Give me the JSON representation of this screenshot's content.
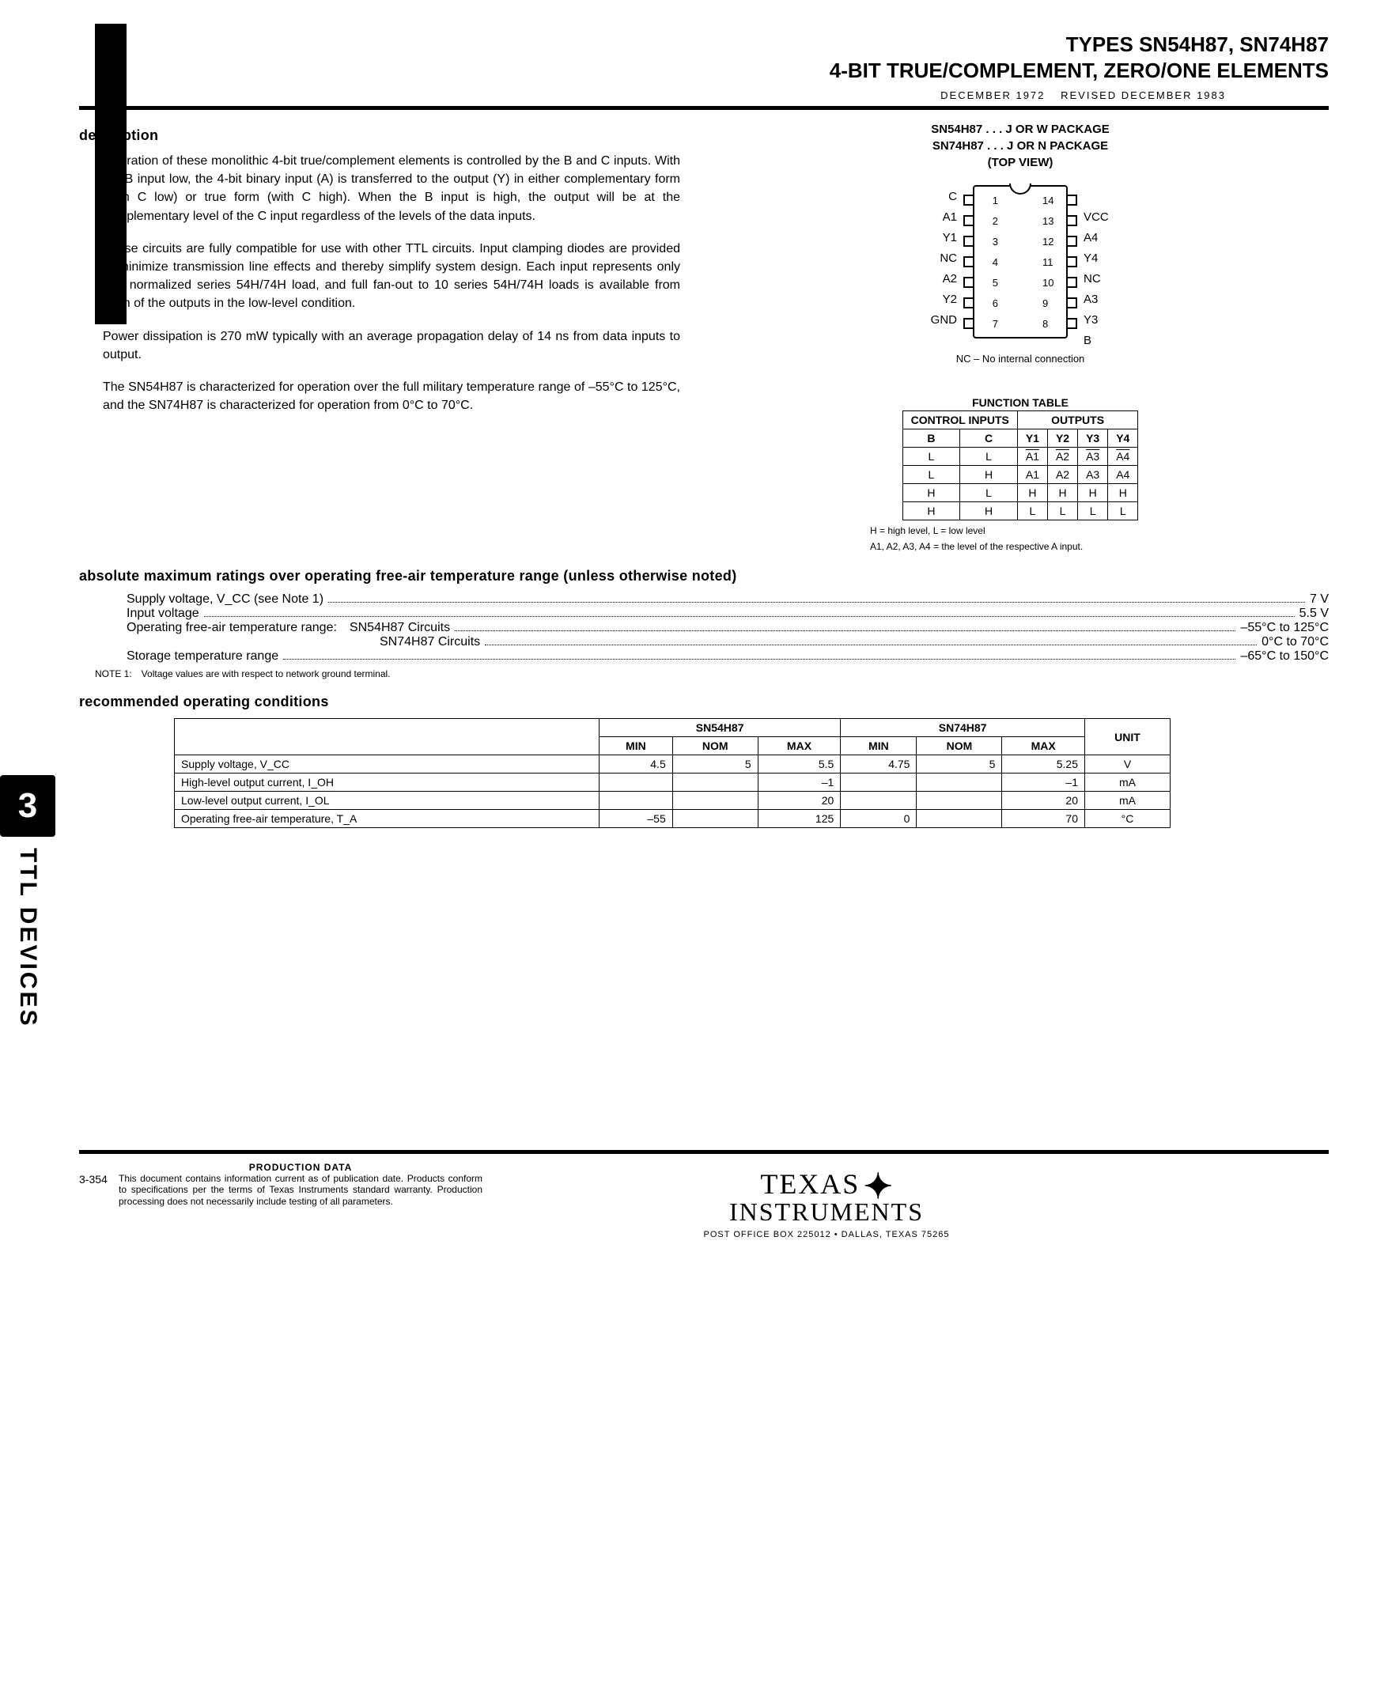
{
  "header": {
    "title_line1": "TYPES SN54H87, SN74H87",
    "title_line2": "4-BIT TRUE/COMPLEMENT, ZERO/ONE ELEMENTS",
    "revision": "DECEMBER 1972   REVISED DECEMBER 1983"
  },
  "sections": {
    "description_head": "description",
    "abs_max_head": "absolute maximum ratings over operating free-air temperature range (unless otherwise noted)",
    "rec_op_head": "recommended operating conditions"
  },
  "paragraphs": {
    "p1": "Operation of these monolithic 4-bit true/complement elements is controlled by the B and C inputs. With the B input low, the 4-bit binary input (A) is transferred to the output (Y) in either complementary form (with C low) or true form (with C high). When the B input is high, the output will be at the complementary level of the C input regardless of the levels of the data inputs.",
    "p2": "These circuits are fully compatible for use with other TTL circuits. Input clamping diodes are provided to minimize transmission line effects and thereby simplify system design. Each input represents only one normalized series 54H/74H load, and full fan-out to 10 series 54H/74H loads is available from each of the outputs in the low-level condition.",
    "p3": "Power dissipation is 270 mW typically with an average propagation delay of 14 ns from data inputs to output.",
    "p4": "The SN54H87 is characterized for operation over the full military temperature range of –55°C to 125°C, and the SN74H87 is characterized for operation from 0°C to 70°C."
  },
  "package": {
    "line1": "SN54H87 . . . J OR W PACKAGE",
    "line2": "SN74H87 . . . J OR N PACKAGE",
    "line3": "(TOP VIEW)",
    "pins_left": [
      "C",
      "A1",
      "Y1",
      "NC",
      "A2",
      "Y2",
      "GND"
    ],
    "pins_right": [
      "VCC",
      "A4",
      "Y4",
      "NC",
      "A3",
      "Y3",
      "B"
    ],
    "nums_left": [
      "1",
      "2",
      "3",
      "4",
      "5",
      "6",
      "7"
    ],
    "nums_right": [
      "14",
      "13",
      "12",
      "11",
      "10",
      "9",
      "8"
    ],
    "nc_note": "NC – No internal connection"
  },
  "function_table": {
    "title": "FUNCTION TABLE",
    "control_head": "CONTROL INPUTS",
    "outputs_head": "OUTPUTS",
    "cols_ctrl": [
      "B",
      "C"
    ],
    "cols_out": [
      "Y1",
      "Y2",
      "Y3",
      "Y4"
    ],
    "rows": [
      {
        "b": "L",
        "c": "L",
        "y": [
          "A1",
          "A2",
          "A3",
          "A4"
        ],
        "inv": true
      },
      {
        "b": "L",
        "c": "H",
        "y": [
          "A1",
          "A2",
          "A3",
          "A4"
        ],
        "inv": false
      },
      {
        "b": "H",
        "c": "L",
        "y": [
          "H",
          "H",
          "H",
          "H"
        ],
        "inv": false
      },
      {
        "b": "H",
        "c": "H",
        "y": [
          "L",
          "L",
          "L",
          "L"
        ],
        "inv": false
      }
    ],
    "note1": "H = high level, L = low level",
    "note2": "A1, A2, A3, A4 = the level of the respective A input."
  },
  "ratings": [
    {
      "label": "Supply voltage, V_CC (see Note 1)",
      "value": "7 V"
    },
    {
      "label": "Input voltage",
      "value": "5.5 V"
    },
    {
      "label": "Operating free-air temperature range: SN54H87 Circuits",
      "value": "–55°C to 125°C"
    },
    {
      "label": "                    SN74H87 Circuits",
      "value": "0°C to 70°C"
    },
    {
      "label": "Storage temperature range",
      "value": "–65°C to 150°C"
    }
  ],
  "note1": "NOTE 1: Voltage values are with respect to network ground terminal.",
  "op_table": {
    "dev1": "SN54H87",
    "dev2": "SN74H87",
    "unit_head": "UNIT",
    "sub_heads": [
      "MIN",
      "NOM",
      "MAX",
      "MIN",
      "NOM",
      "MAX"
    ],
    "rows": [
      {
        "p": "Supply voltage, V_CC",
        "v": [
          "4.5",
          "5",
          "5.5",
          "4.75",
          "5",
          "5.25"
        ],
        "u": "V"
      },
      {
        "p": "High-level output current, I_OH",
        "v": [
          "",
          "",
          "–1",
          "",
          "",
          "–1"
        ],
        "u": "mA"
      },
      {
        "p": "Low-level output current, I_OL",
        "v": [
          "",
          "",
          "20",
          "",
          "",
          "20"
        ],
        "u": "mA"
      },
      {
        "p": "Operating free-air temperature, T_A",
        "v": [
          "–55",
          "",
          "125",
          "0",
          "",
          "70"
        ],
        "u": "°C"
      }
    ]
  },
  "side_tab": {
    "num": "3",
    "text": "TTL DEVICES"
  },
  "footer": {
    "prod_title": "PRODUCTION DATA",
    "prod_body": "This document contains information current as of publication date. Products conform to specifications per the terms of Texas Instruments standard warranty. Production processing does not necessarily include testing of all parameters.",
    "pgnum": "3-354",
    "ti_texas": "TEXAS",
    "ti_instr": "INSTRUMENTS",
    "ti_addr": "POST OFFICE BOX 225012 • DALLAS, TEXAS 75265"
  },
  "colors": {
    "text": "#000000",
    "bg": "#ffffff"
  }
}
